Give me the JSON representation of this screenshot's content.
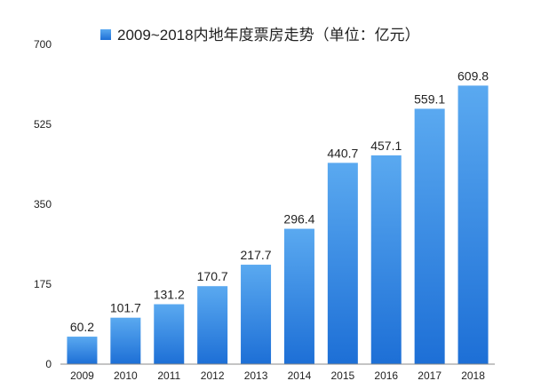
{
  "chart_data": {
    "type": "bar",
    "title": "",
    "legend": {
      "label": "2009~2018内地年度票房走势（单位：亿元）",
      "position": "top"
    },
    "categories": [
      "2009",
      "2010",
      "2011",
      "2012",
      "2013",
      "2014",
      "2015",
      "2016",
      "2017",
      "2018"
    ],
    "series": [
      {
        "name": "2009~2018内地年度票房走势（单位：亿元）",
        "values": [
          60.2,
          101.7,
          131.2,
          170.7,
          217.7,
          296.4,
          440.7,
          457.1,
          559.1,
          609.8
        ]
      }
    ],
    "data_labels": [
      "60.2",
      "101.7",
      "131.2",
      "170.7",
      "217.7",
      "296.4",
      "440.7",
      "457.1",
      "559.1",
      "609.8"
    ],
    "y_ticks": [
      "0",
      "175",
      "350",
      "525",
      "700"
    ],
    "ylim": [
      0,
      700
    ],
    "xlabel": "",
    "ylabel": "",
    "grid": false,
    "colors": {
      "bar_top": "#5aa9f0",
      "bar_bottom": "#1d6fd6",
      "legend_swatch": "#2f86e0",
      "axis": "#888888"
    }
  }
}
